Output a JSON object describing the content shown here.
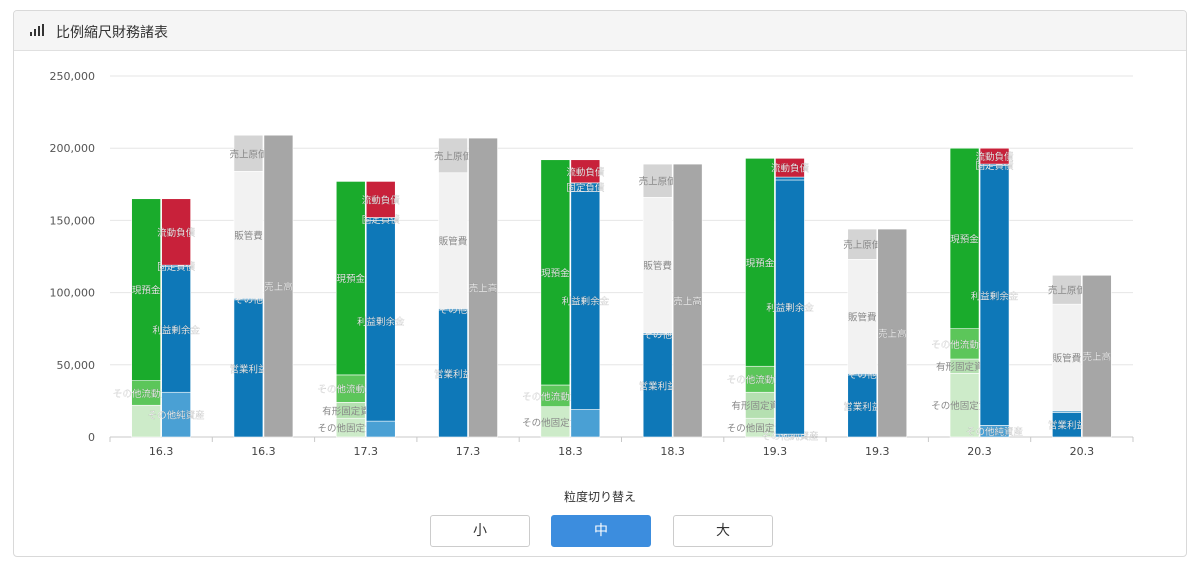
{
  "panel": {
    "title": "比例縮尺財務諸表",
    "icon": "bar-signal-icon"
  },
  "granularity": {
    "label": "粒度切り替え",
    "options": [
      "小",
      "中",
      "大"
    ],
    "selected": "中"
  },
  "colors": {
    "cash": "#1aab2c",
    "other_current_assets": "#5cc65a",
    "tangible_fixed_assets": "#b5e0b1",
    "other_fixed_assets": "#cdebc9",
    "current_liabilities": "#c8213a",
    "fixed_liabilities": "#0e78b8",
    "retained_earnings": "#0e78b8",
    "other_net_assets": "#4aa0d4",
    "cost_of_sales": "#d4d4d4",
    "sga": "#f2f2f2",
    "other_cost": "#0e78b8",
    "operating_income": "#0e78b8",
    "sales": "#a6a6a6",
    "accent": "#3c8dde"
  },
  "chart_data": {
    "type": "bar",
    "stacked": true,
    "ylim": [
      0,
      250000
    ],
    "yticks": [
      "0",
      "50,000",
      "100,000",
      "150,000",
      "200,000",
      "250,000"
    ],
    "grid": true,
    "categories": [
      "16.3",
      "16.3",
      "17.3",
      "17.3",
      "18.3",
      "18.3",
      "19.3",
      "19.3",
      "20.3",
      "20.3"
    ],
    "groups": [
      {
        "label": "16.3",
        "kind": "bs",
        "left": [
          {
            "name": "",
            "value": 22000,
            "color": "other_fixed_assets"
          },
          {
            "name": "その他流動資産",
            "value": 17000,
            "color": "other_current_assets"
          },
          {
            "name": "現預金",
            "value": 126000,
            "color": "cash"
          }
        ],
        "right": [
          {
            "name": "その他純資産",
            "value": 31000,
            "color": "other_net_assets"
          },
          {
            "name": "利益剰余金",
            "value": 87000,
            "color": "retained_earnings"
          },
          {
            "name": "固定負債",
            "value": 1000,
            "color": "fixed_liabilities"
          },
          {
            "name": "流動負債",
            "value": 46000,
            "color": "current_liabilities"
          }
        ]
      },
      {
        "label": "16.3",
        "kind": "pl",
        "left": [
          {
            "name": "営業利益",
            "value": 95000,
            "color": "operating_income"
          },
          {
            "name": "その他",
            "value": 1000,
            "color": "other_cost"
          },
          {
            "name": "販管費",
            "value": 88000,
            "color": "sga"
          },
          {
            "name": "売上原価",
            "value": 25000,
            "color": "cost_of_sales"
          }
        ],
        "right": [
          {
            "name": "売上高",
            "value": 209000,
            "color": "sales"
          }
        ]
      },
      {
        "label": "17.3",
        "kind": "bs",
        "left": [
          {
            "name": "その他固定資産",
            "value": 13000,
            "color": "other_fixed_assets"
          },
          {
            "name": "有形固定資産",
            "value": 11000,
            "color": "tangible_fixed_assets"
          },
          {
            "name": "その他流動資産",
            "value": 19000,
            "color": "other_current_assets"
          },
          {
            "name": "現預金",
            "value": 134000,
            "color": "cash"
          }
        ],
        "right": [
          {
            "name": "",
            "value": 11000,
            "color": "other_net_assets"
          },
          {
            "name": "利益剰余金",
            "value": 139000,
            "color": "retained_earnings"
          },
          {
            "name": "固定負債",
            "value": 2000,
            "color": "fixed_liabilities"
          },
          {
            "name": "流動負債",
            "value": 25000,
            "color": "current_liabilities"
          }
        ]
      },
      {
        "label": "17.3",
        "kind": "pl",
        "left": [
          {
            "name": "営業利益",
            "value": 88000,
            "color": "operating_income"
          },
          {
            "name": "その他",
            "value": 1000,
            "color": "other_cost"
          },
          {
            "name": "販管費",
            "value": 94000,
            "color": "sga"
          },
          {
            "name": "売上原価",
            "value": 24000,
            "color": "cost_of_sales"
          }
        ],
        "right": [
          {
            "name": "売上高",
            "value": 207000,
            "color": "sales"
          }
        ]
      },
      {
        "label": "18.3",
        "kind": "bs",
        "left": [
          {
            "name": "その他固定資産",
            "value": 21000,
            "color": "other_fixed_assets"
          },
          {
            "name": "その他流動資産",
            "value": 15000,
            "color": "other_current_assets"
          },
          {
            "name": "現預金",
            "value": 156000,
            "color": "cash"
          }
        ],
        "right": [
          {
            "name": "",
            "value": 19000,
            "color": "other_net_assets"
          },
          {
            "name": "利益剰余金",
            "value": 151000,
            "color": "retained_earnings"
          },
          {
            "name": "固定負債",
            "value": 6000,
            "color": "fixed_liabilities"
          },
          {
            "name": "流動負債",
            "value": 16000,
            "color": "current_liabilities"
          }
        ]
      },
      {
        "label": "18.3",
        "kind": "pl",
        "left": [
          {
            "name": "営業利益",
            "value": 71000,
            "color": "operating_income"
          },
          {
            "name": "その他",
            "value": 1000,
            "color": "other_cost"
          },
          {
            "name": "販管費",
            "value": 94000,
            "color": "sga"
          },
          {
            "name": "売上原価",
            "value": 23000,
            "color": "cost_of_sales"
          }
        ],
        "right": [
          {
            "name": "売上高",
            "value": 189000,
            "color": "sales"
          }
        ]
      },
      {
        "label": "19.3",
        "kind": "bs",
        "left": [
          {
            "name": "その他固定資産",
            "value": 13000,
            "color": "other_fixed_assets"
          },
          {
            "name": "有形固定資産",
            "value": 18000,
            "color": "tangible_fixed_assets"
          },
          {
            "name": "その他流動資産",
            "value": 18000,
            "color": "other_current_assets"
          },
          {
            "name": "現預金",
            "value": 144000,
            "color": "cash"
          }
        ],
        "right": [
          {
            "name": "その他純資産",
            "value": 2000,
            "color": "other_net_assets"
          },
          {
            "name": "利益剰余金",
            "value": 176000,
            "color": "retained_earnings"
          },
          {
            "name": "",
            "value": 2000,
            "color": "fixed_liabilities"
          },
          {
            "name": "流動負債",
            "value": 13000,
            "color": "current_liabilities"
          }
        ]
      },
      {
        "label": "19.3",
        "kind": "pl",
        "left": [
          {
            "name": "営業利益",
            "value": 43000,
            "color": "operating_income"
          },
          {
            "name": "その他",
            "value": 1000,
            "color": "other_cost"
          },
          {
            "name": "販管費",
            "value": 79000,
            "color": "sga"
          },
          {
            "name": "売上原価",
            "value": 21000,
            "color": "cost_of_sales"
          }
        ],
        "right": [
          {
            "name": "売上高",
            "value": 144000,
            "color": "sales"
          }
        ]
      },
      {
        "label": "20.3",
        "kind": "bs",
        "left": [
          {
            "name": "その他固定資産",
            "value": 44000,
            "color": "other_fixed_assets"
          },
          {
            "name": "有形固定資産",
            "value": 10000,
            "color": "tangible_fixed_assets"
          },
          {
            "name": "その他流動資産",
            "value": 21000,
            "color": "other_current_assets"
          },
          {
            "name": "現預金",
            "value": 125000,
            "color": "cash"
          }
        ],
        "right": [
          {
            "name": "その他純資産",
            "value": 8000,
            "color": "other_net_assets"
          },
          {
            "name": "利益剰余金",
            "value": 180000,
            "color": "retained_earnings"
          },
          {
            "name": "固定負債",
            "value": 1000,
            "color": "fixed_liabilities"
          },
          {
            "name": "流動負債",
            "value": 11000,
            "color": "current_liabilities"
          }
        ]
      },
      {
        "label": "20.3",
        "kind": "pl",
        "left": [
          {
            "name": "営業利益",
            "value": 17000,
            "color": "operating_income"
          },
          {
            "name": "",
            "value": 1000,
            "color": "other_cost"
          },
          {
            "name": "販管費",
            "value": 74000,
            "color": "sga"
          },
          {
            "name": "売上原価",
            "value": 20000,
            "color": "cost_of_sales"
          }
        ],
        "right": [
          {
            "name": "売上高",
            "value": 112000,
            "color": "sales"
          }
        ]
      }
    ]
  }
}
